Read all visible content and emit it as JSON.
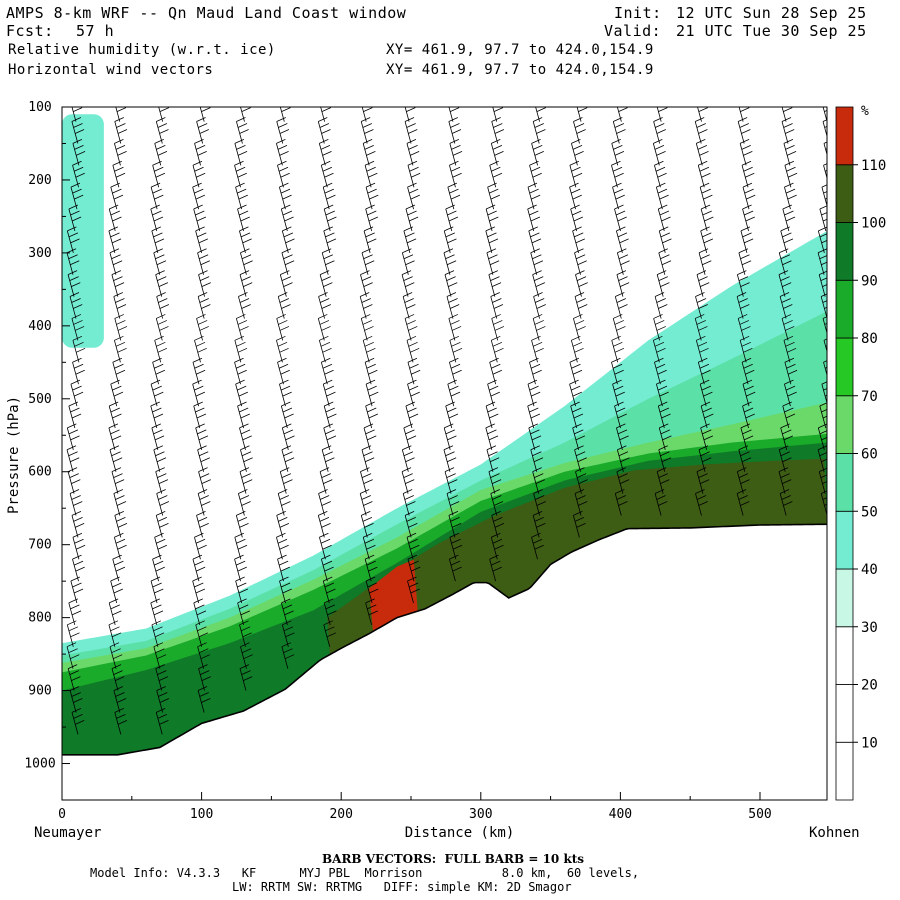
{
  "header": {
    "title": "AMPS 8-km WRF -- Qn Maud Land Coast window",
    "fcst_label": "Fcst:",
    "fcst_value": "57 h",
    "init_label": "Init:",
    "init_value": "12 UTC Sun 28 Sep 25",
    "valid_label": "Valid:",
    "valid_value": "21 UTC Tue 30 Sep 25",
    "field1": "Relative humidity (w.r.t. ice)",
    "field2": "Horizontal wind vectors",
    "xy1": "XY= 461.9, 97.7 to 424.0,154.9",
    "xy2": "XY= 461.9, 97.7 to 424.0,154.9"
  },
  "footer": {
    "barb_note": "BARB VECTORS:  FULL BARB = 10 kts",
    "model_info": "Model Info: V4.3.3   KF      MYJ PBL  Morrison           8.0 km,  60 levels,",
    "physics": "LW: RRTM SW: RRTMG   DIFF: simple KM: 2D Smagor"
  },
  "chart_data": {
    "type": "heatmap",
    "title": "Relative humidity (w.r.t. ice) cross-section with horizontal wind vectors",
    "xlabel": "Distance (km)",
    "ylabel": "Pressure (hPa)",
    "x_range": [
      0,
      548
    ],
    "x_ticks": [
      0,
      100,
      200,
      300,
      400,
      500
    ],
    "x_tick_labels": [
      "0",
      "100",
      "200",
      "300",
      "400",
      "500"
    ],
    "y_range": [
      100,
      1050
    ],
    "y_ticks": [
      100,
      200,
      300,
      400,
      500,
      600,
      700,
      800,
      900,
      1000
    ],
    "y_tick_labels": [
      "100",
      "200",
      "300",
      "400",
      "500",
      "600",
      "700",
      "800",
      "900",
      "1000"
    ],
    "start_label": "Neumayer",
    "end_label": "Kohnen",
    "colorbar": {
      "unit": "%",
      "levels": [
        10,
        20,
        30,
        40,
        50,
        60,
        70,
        80,
        90,
        100,
        110
      ],
      "level_labels": [
        "10",
        "20",
        "30",
        "40",
        "50",
        "60",
        "70",
        "80",
        "90",
        "100",
        "110"
      ],
      "colors": [
        "#ffffff",
        "#ffffff",
        "#ffffff",
        "#c8f7e6",
        "#73ecd2",
        "#5be0a8",
        "#6ad96a",
        "#26c826",
        "#1aab2a",
        "#0f7a27",
        "#3d5c14",
        "#c82b0c"
      ]
    },
    "terrain": {
      "distance_km": [
        0,
        40,
        70,
        100,
        130,
        160,
        185,
        200,
        220,
        240,
        260,
        280,
        295,
        305,
        320,
        335,
        350,
        365,
        385,
        405,
        450,
        500,
        548
      ],
      "surface_pressure_hpa": [
        988,
        988,
        978,
        945,
        928,
        898,
        858,
        842,
        822,
        800,
        788,
        768,
        752,
        752,
        773,
        760,
        727,
        710,
        693,
        678,
        677,
        673,
        672
      ]
    },
    "rh_layers": [
      {
        "level": 40,
        "distance_km": [
          0,
          60,
          120,
          180,
          240,
          300,
          360,
          420,
          480,
          548
        ],
        "top_pressure_hpa": [
          835,
          815,
          770,
          715,
          650,
          590,
          510,
          420,
          345,
          270
        ]
      },
      {
        "level": 50,
        "distance_km": [
          0,
          60,
          120,
          180,
          240,
          300,
          360,
          420,
          480,
          548
        ],
        "top_pressure_hpa": [
          852,
          832,
          788,
          735,
          672,
          612,
          560,
          500,
          445,
          380
        ]
      },
      {
        "level": 60,
        "distance_km": [
          0,
          60,
          120,
          180,
          240,
          300,
          360,
          420,
          480,
          548
        ],
        "top_pressure_hpa": [
          862,
          842,
          800,
          748,
          690,
          625,
          588,
          560,
          535,
          505
        ]
      },
      {
        "level": 80,
        "distance_km": [
          0,
          60,
          120,
          180,
          240,
          300,
          360,
          420,
          480,
          548
        ],
        "top_pressure_hpa": [
          875,
          852,
          812,
          762,
          705,
          640,
          600,
          575,
          560,
          548
        ]
      },
      {
        "level": 90,
        "distance_km": [
          0,
          60,
          120,
          180,
          240,
          300,
          360,
          420,
          480,
          548
        ],
        "top_pressure_hpa": [
          900,
          872,
          835,
          790,
          725,
          655,
          612,
          585,
          572,
          560
        ]
      },
      {
        "level": 100,
        "distance_km": [
          190,
          230,
          270,
          310,
          360,
          410,
          460,
          510,
          548
        ],
        "top_pressure_hpa": [
          800,
          745,
          698,
          660,
          622,
          598,
          590,
          585,
          582
        ]
      },
      {
        "level": 110,
        "distance_km": [
          220,
          240,
          255
        ],
        "top_pressure_hpa": [
          760,
          730,
          718
        ]
      }
    ],
    "upper_moist_patch": {
      "level": 40,
      "distance_km": [
        0,
        30
      ],
      "pressure_hpa": [
        110,
        430
      ]
    },
    "wind_barb_columns_km": [
      10,
      40,
      70,
      100,
      130,
      160,
      190,
      220,
      250,
      280,
      310,
      340,
      370,
      400,
      430,
      460,
      490,
      520,
      548
    ],
    "wind_barb_levels_hpa": [
      120,
      150,
      180,
      210,
      240,
      270,
      300,
      330,
      360,
      390,
      420,
      450,
      480,
      510,
      540,
      570,
      600,
      630,
      660,
      690,
      720,
      750,
      780,
      810,
      840,
      870,
      900,
      930,
      960
    ]
  }
}
